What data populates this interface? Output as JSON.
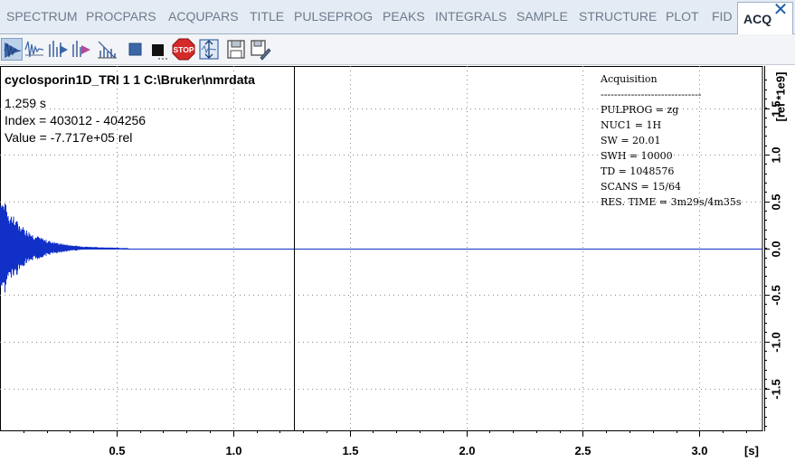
{
  "tabs": [
    "SPECTRUM",
    "PROCPARS",
    "ACQUPARS",
    "TITLE",
    "PULSEPROG",
    "PEAKS",
    "INTEGRALS",
    "SAMPLE",
    "STRUCTURE",
    "PLOT",
    "FID",
    "ACQ"
  ],
  "active_tab": "ACQ",
  "close_glyph": "✕",
  "toolbar": {
    "icons": [
      "acquire-fid-icon",
      "acquire-fid-overlay-icon",
      "acquire-spectrum-icon",
      "acquire-spectrum-overlay-icon",
      "acquire-ascii-icon",
      "halt-icon",
      "stop-small-icon",
      "stop-icon",
      "autoscale-icon",
      "save-icon",
      "save-as-icon"
    ],
    "stop_label": "STOP"
  },
  "dataset": {
    "header": "cyclosporin1D_TRI  1  1  C:\\Bruker\\nmrdata",
    "cursor_time": "1.259 s",
    "index_range": "Index = 403012 - 404256",
    "value": "Value = -7.717e+05 rel"
  },
  "acquisition": {
    "title": "Acquisition",
    "separator": "------------------------------",
    "lines": [
      "PULPROG = zg",
      "NUC1 = 1H",
      "SW = 20.01",
      "SWH = 10000",
      "TD = 1048576",
      "SCANS = 15/64",
      "RES. TIME = 3m29s/4m35s"
    ]
  },
  "chart_data": {
    "type": "line",
    "x_unit": "[s]",
    "y_unit": "[rel *1e9]",
    "x_ticks": [
      "0.5",
      "1.0",
      "1.5",
      "2.0",
      "2.5",
      "3.0"
    ],
    "y_ticks": [
      "1.5",
      "1.0",
      "0.5",
      "0.0",
      "-0.5",
      "-1.0",
      "-1.5"
    ],
    "xlim": [
      0,
      3.27
    ],
    "ylim": [
      -1.95,
      1.95
    ],
    "cursor_x": 1.259,
    "grid": true,
    "series": [
      {
        "shape": "exponentially decaying FID",
        "peak_amplitude": 0.6,
        "decay_end": 0.55
      }
    ]
  },
  "colors": {
    "signal": "#1030c8",
    "grid": "#8a8a8a",
    "cursor": "#000000",
    "active_tab_text": "#1d2738",
    "inactive_tab_text": "#6e7a8c",
    "stop_red": "#d42a2a"
  }
}
